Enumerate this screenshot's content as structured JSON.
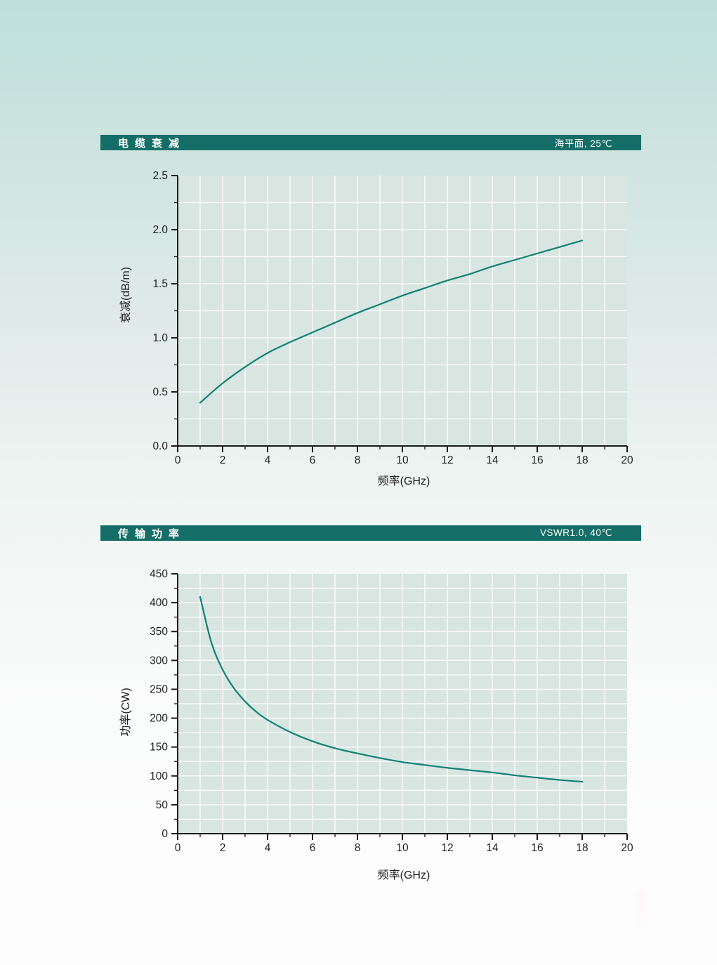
{
  "page": {
    "background_top_color": "#bedfda",
    "background_bottom_color": "#fdfdfd",
    "header_bar_color": "#146d66",
    "plot_background_color": "#d8e5e1",
    "axis_color": "#1a1a1a",
    "gridline_color": "#ffffff"
  },
  "charts": [
    {
      "title": "电缆衰减",
      "condition": "海平面, 25℃",
      "chart_data": {
        "type": "line",
        "x": [
          1,
          2,
          3,
          4,
          5,
          6,
          7,
          8,
          9,
          10,
          11,
          12,
          13,
          14,
          15,
          16,
          17,
          18
        ],
        "values": [
          0.4,
          0.58,
          0.73,
          0.86,
          0.96,
          1.05,
          1.14,
          1.23,
          1.31,
          1.39,
          1.46,
          1.53,
          1.59,
          1.66,
          1.72,
          1.78,
          1.84,
          1.9
        ],
        "xlabel": "频率(GHz)",
        "ylabel": "衰减(dB/m)",
        "xlim": [
          0,
          20
        ],
        "ylim": [
          0,
          2.5
        ],
        "xticks": [
          0,
          2,
          4,
          6,
          8,
          10,
          12,
          14,
          16,
          18,
          20
        ],
        "xtick_minor_step": 1,
        "yticks": [
          0,
          0.5,
          1,
          1.5,
          2,
          2.5
        ],
        "ytick_labels": [
          "0.0",
          "0.5",
          "1.0",
          "1.5",
          "2.0",
          "2.5"
        ],
        "ytick_minor_step": 0.25,
        "grid_x_step": 1,
        "grid_y_step": 0.25,
        "line_color": "#0f8173",
        "grid": true,
        "legend": false
      }
    },
    {
      "title": "传输功率",
      "condition": "VSWR1.0, 40℃",
      "chart_data": {
        "type": "line",
        "x": [
          1,
          1.5,
          2,
          2.5,
          3,
          3.5,
          4,
          5,
          6,
          7,
          8,
          9,
          10,
          11,
          12,
          13,
          14,
          15,
          16,
          17,
          18
        ],
        "values": [
          410,
          331,
          284,
          252,
          229,
          211,
          197,
          176,
          160,
          148,
          139,
          131,
          124,
          119,
          114,
          110,
          106,
          101,
          97,
          93,
          90
        ],
        "xlabel": "频率(GHz)",
        "ylabel": "功率(CW)",
        "xlim": [
          0,
          20
        ],
        "ylim": [
          0,
          450
        ],
        "xticks": [
          0,
          2,
          4,
          6,
          8,
          10,
          12,
          14,
          16,
          18,
          20
        ],
        "xtick_minor_step": 1,
        "yticks": [
          0,
          50,
          100,
          150,
          200,
          250,
          300,
          350,
          400,
          450
        ],
        "ytick_labels": [
          "0",
          "50",
          "100",
          "150",
          "200",
          "250",
          "300",
          "350",
          "400",
          "450"
        ],
        "ytick_minor_step": 25,
        "grid_x_step": 1,
        "grid_y_step": 25,
        "line_color": "#0f8173",
        "grid": true,
        "legend": false
      }
    }
  ]
}
